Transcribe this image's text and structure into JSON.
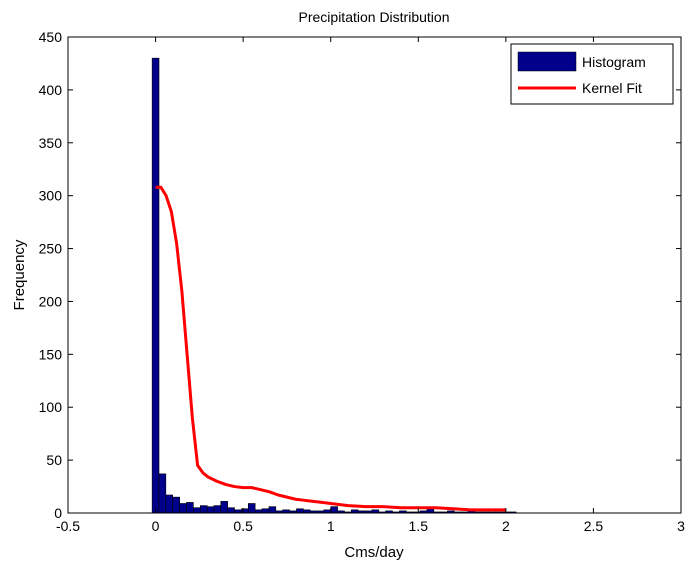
{
  "chart_data": {
    "type": "bar",
    "title": "Precipitation Distribution",
    "xlabel": "Cms/day",
    "ylabel": "Frequency",
    "xlim": [
      -0.5,
      3
    ],
    "ylim": [
      0,
      450
    ],
    "xticks": [
      -0.5,
      0,
      0.5,
      1,
      1.5,
      2,
      2.5,
      3
    ],
    "xtick_labels": [
      "-0.5",
      "0",
      "0.5",
      "1",
      "1.5",
      "2",
      "2.5",
      "3"
    ],
    "yticks": [
      0,
      50,
      100,
      150,
      200,
      250,
      300,
      350,
      400,
      450
    ],
    "ytick_labels": [
      "0",
      "50",
      "100",
      "150",
      "200",
      "250",
      "300",
      "350",
      "400",
      "450"
    ],
    "legend_position": "top-right",
    "bin_width": 0.0392,
    "series": [
      {
        "name": "Histogram",
        "kind": "bars",
        "color": "#00008b",
        "edge_color": "#000000",
        "bin_centers": [
          0.0,
          0.039,
          0.078,
          0.118,
          0.157,
          0.196,
          0.235,
          0.275,
          0.314,
          0.353,
          0.392,
          0.431,
          0.471,
          0.51,
          0.549,
          0.588,
          0.627,
          0.667,
          0.706,
          0.745,
          0.784,
          0.824,
          0.863,
          0.902,
          0.941,
          0.98,
          1.02,
          1.059,
          1.098,
          1.137,
          1.176,
          1.216,
          1.255,
          1.294,
          1.333,
          1.373,
          1.412,
          1.451,
          1.49,
          1.529,
          1.569,
          1.608,
          1.647,
          1.686,
          1.725,
          1.765,
          1.804,
          1.843,
          1.882,
          1.922,
          1.961,
          2.0,
          2.039
        ],
        "values": [
          430,
          37,
          17,
          15,
          9,
          10,
          5,
          7,
          6,
          7,
          11,
          5,
          3,
          4,
          9,
          3,
          4,
          6,
          2,
          3,
          2,
          4,
          3,
          2,
          2,
          3,
          6,
          2,
          1,
          3,
          2,
          2,
          3,
          1,
          2,
          1,
          2,
          1,
          1,
          2,
          5,
          1,
          1,
          2,
          1,
          1,
          2,
          1,
          1,
          1,
          1,
          1,
          1
        ]
      },
      {
        "name": "Kernel Fit",
        "kind": "line",
        "color": "#ff0000",
        "x": [
          0.0,
          0.03,
          0.06,
          0.09,
          0.12,
          0.15,
          0.18,
          0.21,
          0.24,
          0.27,
          0.3,
          0.35,
          0.4,
          0.45,
          0.5,
          0.55,
          0.6,
          0.65,
          0.7,
          0.75,
          0.8,
          0.85,
          0.9,
          0.95,
          1.0,
          1.1,
          1.2,
          1.3,
          1.4,
          1.5,
          1.6,
          1.7,
          1.8,
          1.9,
          2.0
        ],
        "y": [
          308,
          308,
          300,
          285,
          255,
          210,
          150,
          90,
          45,
          38,
          34,
          30,
          27,
          25,
          24,
          24,
          22,
          20,
          17,
          15,
          13,
          12,
          11,
          10,
          9,
          7,
          6,
          6,
          5,
          5,
          5,
          4,
          3,
          3,
          3
        ]
      }
    ]
  }
}
